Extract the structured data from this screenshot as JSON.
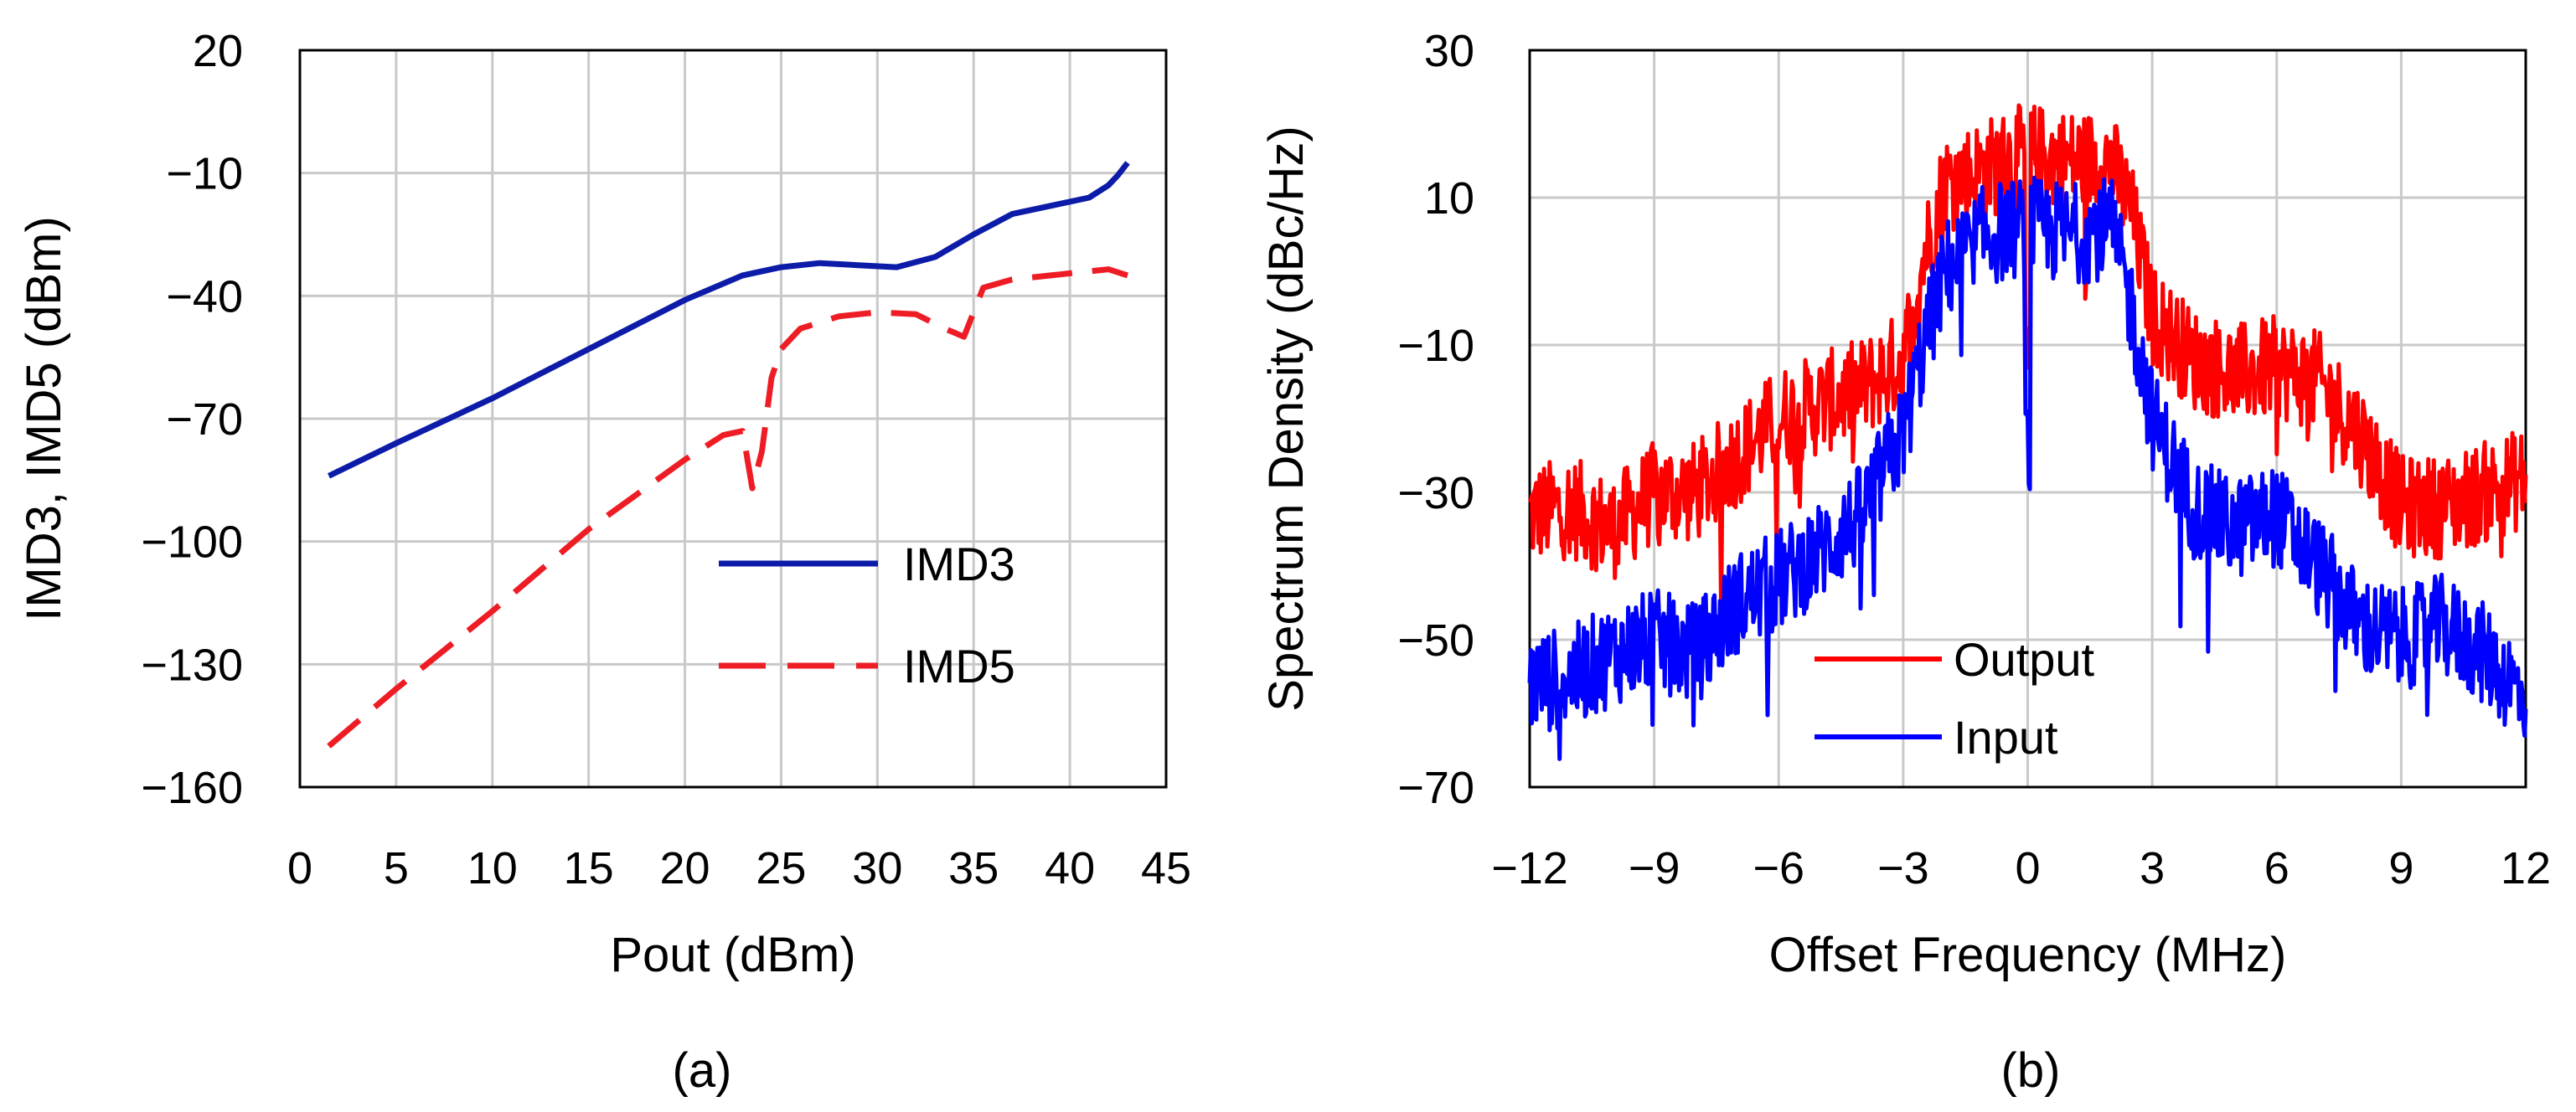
{
  "chart_data": [
    {
      "type": "line",
      "caption": "(a)",
      "xlabel": "Pout (dBm)",
      "ylabel": "IMD3, IMD5 (dBm)",
      "xlim": [
        0,
        45
      ],
      "ylim": [
        -160,
        20
      ],
      "xticks": [
        0,
        5,
        10,
        15,
        20,
        25,
        30,
        35,
        40,
        45
      ],
      "yticks": [
        20,
        -10,
        -40,
        -70,
        -100,
        -130,
        -160
      ],
      "xtick_labels": [
        "0",
        "5",
        "10",
        "15",
        "20",
        "25",
        "30",
        "35",
        "40",
        "45"
      ],
      "ytick_labels": [
        "20",
        "−10",
        "−40",
        "−70",
        "−100",
        "−130",
        "−160"
      ],
      "grid": true,
      "legend": "center-right",
      "series": [
        {
          "name": "IMD3",
          "color": "#0c1ba8",
          "style": "solid",
          "x": [
            1.5,
            5,
            10,
            15,
            20,
            23,
            25,
            27,
            29,
            31,
            33,
            35,
            37,
            39,
            41,
            42,
            42.5,
            43
          ],
          "y": [
            -84,
            -76,
            -65,
            -53,
            -41,
            -35,
            -33,
            -32,
            -32.5,
            -33,
            -30.5,
            -25,
            -20,
            -18,
            -16,
            -13,
            -10.5,
            -7.5
          ]
        },
        {
          "name": "IMD5",
          "color": "#ee1c24",
          "style": "dashed",
          "x": [
            1.5,
            5,
            10,
            15,
            20,
            22,
            23,
            23.5,
            24,
            24.5,
            25,
            26,
            28,
            30,
            32,
            33.5,
            34.5,
            35.5,
            37,
            39,
            41,
            42,
            43
          ],
          "y": [
            -150,
            -136,
            -117,
            -97,
            -80,
            -74,
            -73,
            -87,
            -78,
            -60,
            -53,
            -48,
            -45,
            -44,
            -44.5,
            -48,
            -50,
            -38,
            -36,
            -35,
            -34,
            -33.5,
            -35
          ]
        }
      ]
    },
    {
      "type": "line",
      "caption": "(b)",
      "xlabel": "Offset Frequency (MHz)",
      "ylabel": "Spectrum Density (dBc/Hz)",
      "xlim": [
        -12,
        12
      ],
      "ylim": [
        -70,
        30
      ],
      "xticks": [
        -12,
        -9,
        -6,
        -3,
        0,
        3,
        6,
        9,
        12
      ],
      "yticks": [
        30,
        10,
        -10,
        -30,
        -50,
        -70
      ],
      "xtick_labels": [
        "−12",
        "−9",
        "−6",
        "−3",
        "0",
        "3",
        "6",
        "9",
        "12"
      ],
      "ytick_labels": [
        "30",
        "10",
        "−10",
        "−30",
        "−50",
        "−70"
      ],
      "grid": true,
      "legend": "bottom-center",
      "series": [
        {
          "name": "Output",
          "color": "#ff0000",
          "style": "solid",
          "x": [
            -12,
            -11,
            -10,
            -9,
            -8,
            -7,
            -6,
            -5,
            -4,
            -3,
            -2.5,
            -2,
            -1,
            0,
            1,
            2,
            2.5,
            3,
            4,
            5,
            6,
            7,
            8,
            9,
            10,
            11,
            12
          ],
          "y": [
            -33,
            -32,
            -35,
            -30,
            -30,
            -25,
            -20,
            -18,
            -16,
            -12,
            2,
            12,
            14,
            16,
            15,
            15,
            8,
            -6,
            -12,
            -14,
            -13,
            -15,
            -22,
            -32,
            -32,
            -30,
            -28
          ]
        },
        {
          "name": "Input",
          "color": "#0000ff",
          "style": "solid",
          "x": [
            -12,
            -11,
            -10,
            -9,
            -8,
            -7,
            -6,
            -5,
            -4,
            -3,
            -2.5,
            -2,
            -1,
            0,
            1,
            2,
            2.5,
            3,
            4,
            5,
            6,
            7,
            8,
            9,
            10,
            11,
            12
          ],
          "y": [
            -56,
            -55,
            -52,
            -50,
            -52,
            -45,
            -42,
            -38,
            -33,
            -22,
            -10,
            0,
            5,
            6,
            5,
            6,
            -5,
            -20,
            -32,
            -35,
            -33,
            -40,
            -48,
            -50,
            -48,
            -52,
            -58
          ]
        }
      ]
    }
  ]
}
